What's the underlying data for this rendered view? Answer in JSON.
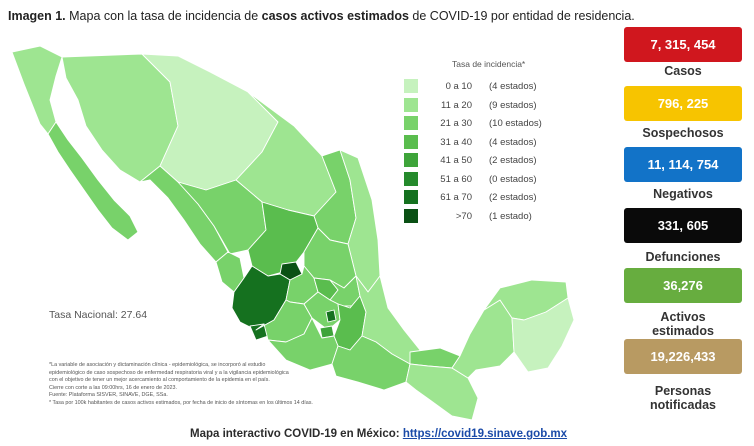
{
  "title": {
    "prefix": "Imagen 1.",
    "part1": " Mapa con la tasa de incidencia de ",
    "bold": "casos activos estimados",
    "part2": " de COVID-19 por entidad de residencia."
  },
  "legend": {
    "title": "Tasa de incidencia*",
    "items": [
      {
        "range": "0  a  10",
        "count": "(4 estados)",
        "color": "#c6f2be"
      },
      {
        "range": "11  a  20",
        "count": "(9 estados)",
        "color": "#9ee591"
      },
      {
        "range": "21  a  30",
        "count": "(10 estados)",
        "color": "#78d26a"
      },
      {
        "range": "31  a  40",
        "count": "(4 estados)",
        "color": "#5abd4e"
      },
      {
        "range": "41  a  50",
        "count": "(2 estados)",
        "color": "#3ea43a"
      },
      {
        "range": "51  a  60",
        "count": "(0 estados)",
        "color": "#258a2c"
      },
      {
        "range": "61  a  70",
        "count": "(2 estados)",
        "color": "#15711f"
      },
      {
        "range": ">70",
        "count": "(1 estado)",
        "color": "#0a5014"
      }
    ]
  },
  "tasa_nacional": "Tasa Nacional: 27.64",
  "notes": [
    "*La variable de asociación y dictaminación clínica - epidemiológica, se incorporó al estudio",
    "epidemiológico de caso sospechoso de enfermedad respiratoria viral y a la vigilancia epidemiológica",
    "con el objetivo de tener un mejor acercamiento al comportamiento de la epidemia en el país.",
    "Cierre con corte a las 09:00hrs, 16 de enero de 2023.",
    "Fuente: Plataforma SISVER, SINAVE, DGE, SSa.",
    "* Tasa por 100k habitantes de casos activos estimados, por fecha de inicio de síntomas en los últimos 14 días."
  ],
  "footer": {
    "label": "Mapa interactivo COVID-19 en México: ",
    "link": "https://covid19.sinave.gob.mx"
  },
  "stats": [
    {
      "value": "7, 315, 454",
      "label": "Casos",
      "color": "#d0171e"
    },
    {
      "value": "796, 225",
      "label": "Sospechosos",
      "color": "#f7c400"
    },
    {
      "value": "11, 114, 754",
      "label": "Negativos",
      "color": "#1273c8"
    },
    {
      "value": "331, 605",
      "label": "Defunciones",
      "color": "#0a0a0a"
    },
    {
      "value": "36,276",
      "label": "Activos estimados",
      "color": "#67ad3f"
    },
    {
      "value": "19,226,433",
      "label": "Personas notificadas",
      "color": "#b89a62"
    }
  ]
}
